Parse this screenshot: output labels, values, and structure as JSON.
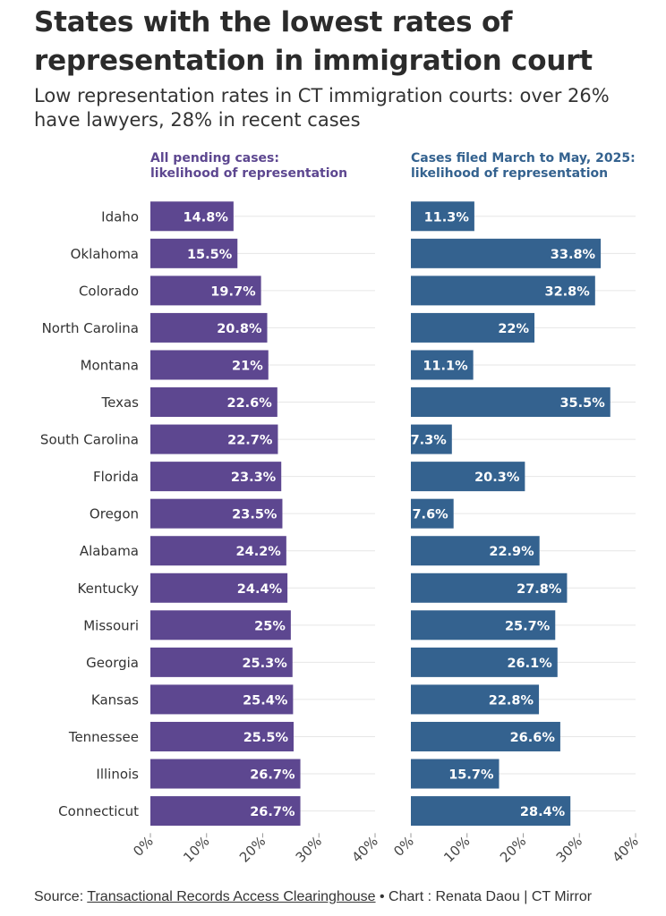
{
  "title": "States with the lowest rates of representation in immigration court",
  "subtitle": "Low representation rates in CT immigration courts: over 26% have lawyers, 28% in recent cases",
  "colors": {
    "panel1": "#5d4790",
    "panel2": "#34628f",
    "grid": "#e6e6e6"
  },
  "chart_data": {
    "type": "bar",
    "orientation": "horizontal",
    "categories": [
      "Idaho",
      "Oklahoma",
      "Colorado",
      "North Carolina",
      "Montana",
      "Texas",
      "South Carolina",
      "Florida",
      "Oregon",
      "Alabama",
      "Kentucky",
      "Missouri",
      "Georgia",
      "Kansas",
      "Tennessee",
      "Illinois",
      "Connecticut"
    ],
    "xlim": [
      0,
      40
    ],
    "ticks": [
      "0%",
      "10%",
      "20%",
      "30%",
      "40%"
    ],
    "grid": true,
    "series": [
      {
        "name": "All pending cases: likelihood of representation",
        "values": [
          14.8,
          15.5,
          19.7,
          20.8,
          21,
          22.6,
          22.7,
          23.3,
          23.5,
          24.2,
          24.4,
          25,
          25.3,
          25.4,
          25.5,
          26.7,
          26.7
        ],
        "labels": [
          "14.8%",
          "15.5%",
          "19.7%",
          "20.8%",
          "21%",
          "22.6%",
          "22.7%",
          "23.3%",
          "23.5%",
          "24.2%",
          "24.4%",
          "25%",
          "25.3%",
          "25.4%",
          "25.5%",
          "26.7%",
          "26.7%"
        ]
      },
      {
        "name": "Cases filed March to May, 2025: likelihood of representation",
        "values": [
          11.3,
          33.8,
          32.8,
          22,
          11.1,
          35.5,
          7.3,
          20.3,
          7.6,
          22.9,
          27.8,
          25.7,
          26.1,
          22.8,
          26.6,
          15.7,
          28.4
        ],
        "labels": [
          "11.3%",
          "33.8%",
          "32.8%",
          "22%",
          "11.1%",
          "35.5%",
          "7.3%",
          "20.3%",
          "7.6%",
          "22.9%",
          "27.8%",
          "25.7%",
          "26.1%",
          "22.8%",
          "26.6%",
          "15.7%",
          "28.4%"
        ]
      }
    ]
  },
  "footer": {
    "source_prefix": "Source: ",
    "source_link": "Transactional Records Access Clearinghouse",
    "credit": " • Chart : Renata Daou | CT Mirror"
  }
}
